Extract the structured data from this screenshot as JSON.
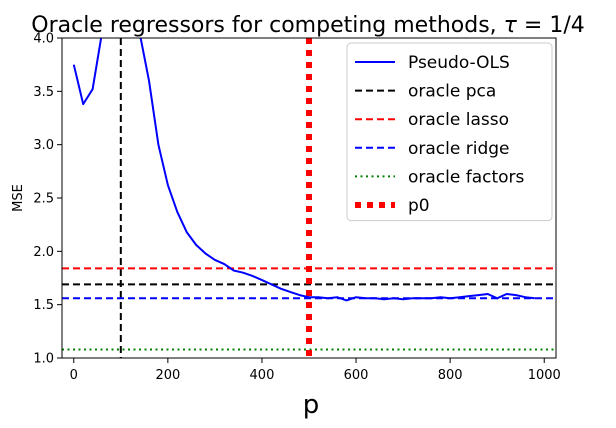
{
  "chart_data": {
    "type": "line",
    "title": "Oracle regressors for competing methods, ",
    "title_math": {
      "symbol": "τ",
      "value": " = 1/4"
    },
    "xlabel": "p",
    "ylabel": "MSE",
    "xlim": [
      -25,
      1025
    ],
    "ylim": [
      1.0,
      4.0
    ],
    "xticks": [
      0,
      200,
      400,
      600,
      800,
      1000
    ],
    "yticks": [
      1.0,
      1.5,
      2.0,
      2.5,
      3.0,
      3.5,
      4.0
    ],
    "grid": false,
    "legend_position": "top-right",
    "series": [
      {
        "name": "Pseudo-OLS",
        "kind": "line",
        "color": "#0000ff",
        "style": "solid",
        "x": [
          0,
          20,
          40,
          60,
          140,
          160,
          180,
          200,
          220,
          240,
          260,
          280,
          300,
          320,
          340,
          360,
          380,
          400,
          420,
          440,
          460,
          480,
          500,
          520,
          540,
          560,
          580,
          600,
          620,
          640,
          660,
          680,
          700,
          720,
          740,
          760,
          780,
          800,
          820,
          840,
          860,
          880,
          900,
          920,
          940,
          960,
          980
        ],
        "y": [
          3.75,
          3.38,
          3.52,
          4.05,
          4.05,
          3.6,
          3.0,
          2.62,
          2.37,
          2.18,
          2.06,
          1.98,
          1.92,
          1.88,
          1.82,
          1.8,
          1.77,
          1.73,
          1.69,
          1.65,
          1.62,
          1.59,
          1.57,
          1.57,
          1.56,
          1.57,
          1.54,
          1.57,
          1.56,
          1.56,
          1.55,
          1.56,
          1.55,
          1.56,
          1.56,
          1.56,
          1.57,
          1.56,
          1.57,
          1.58,
          1.59,
          1.6,
          1.56,
          1.6,
          1.59,
          1.57,
          1.56
        ]
      },
      {
        "name": "oracle pca",
        "kind": "hline",
        "value": 1.69,
        "color": "#000000",
        "style": "dashed"
      },
      {
        "name": "oracle lasso",
        "kind": "hline",
        "value": 1.84,
        "color": "#ff0000",
        "style": "dashed"
      },
      {
        "name": "oracle ridge",
        "kind": "hline",
        "value": 1.56,
        "color": "#0000ff",
        "style": "dashed"
      },
      {
        "name": "oracle factors",
        "kind": "hline",
        "value": 1.08,
        "color": "#008000",
        "style": "dotted"
      },
      {
        "name": "p0",
        "kind": "vline",
        "value": 500,
        "color": "#ff0000",
        "style": "thick-dotted"
      }
    ],
    "extra_lines": [
      {
        "kind": "vline",
        "value": 100,
        "color": "#000000",
        "style": "dashed"
      }
    ]
  }
}
